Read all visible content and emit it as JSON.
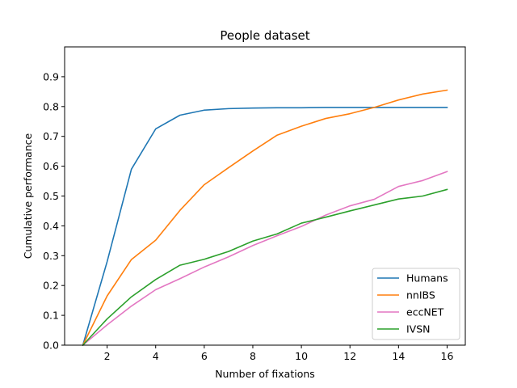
{
  "chart_data": {
    "type": "line",
    "title": "People dataset",
    "xlabel": "Number of fixations",
    "ylabel": "Cumulative performance",
    "xlim": [
      0.25,
      16.75
    ],
    "ylim": [
      0,
      1.0
    ],
    "xticks": [
      2,
      4,
      6,
      8,
      10,
      12,
      14,
      16
    ],
    "yticks": [
      0.0,
      0.1,
      0.2,
      0.3,
      0.4,
      0.5,
      0.6,
      0.7,
      0.8,
      0.9
    ],
    "grid": false,
    "legend_position": "bottom-right",
    "x": [
      1,
      2,
      3,
      4,
      5,
      6,
      7,
      8,
      9,
      10,
      11,
      12,
      13,
      14,
      15,
      16
    ],
    "series": [
      {
        "name": "Humans",
        "color": "#1f77b4",
        "values": [
          0.0,
          0.28,
          0.59,
          0.725,
          0.771,
          0.788,
          0.793,
          0.795,
          0.796,
          0.796,
          0.797,
          0.797,
          0.797,
          0.797,
          0.797,
          0.797
        ]
      },
      {
        "name": "nnIBS",
        "color": "#ff7f0e",
        "values": [
          0.0,
          0.165,
          0.287,
          0.352,
          0.452,
          0.538,
          0.595,
          0.651,
          0.704,
          0.734,
          0.76,
          0.776,
          0.797,
          0.822,
          0.842,
          0.855
        ]
      },
      {
        "name": "eccNET",
        "color": "#e377c2",
        "values": [
          0.0,
          0.068,
          0.131,
          0.186,
          0.223,
          0.262,
          0.296,
          0.334,
          0.367,
          0.398,
          0.436,
          0.467,
          0.489,
          0.532,
          0.552,
          0.582
        ]
      },
      {
        "name": "IVSN",
        "color": "#2ca02c",
        "values": [
          0.0,
          0.088,
          0.162,
          0.22,
          0.268,
          0.288,
          0.314,
          0.349,
          0.373,
          0.409,
          0.429,
          0.45,
          0.47,
          0.49,
          0.5,
          0.522
        ]
      }
    ]
  }
}
